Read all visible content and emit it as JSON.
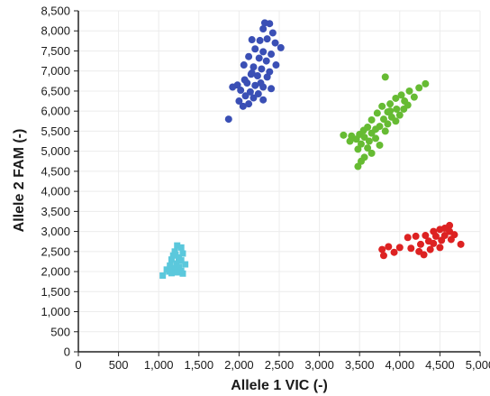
{
  "chart_data": {
    "type": "scatter",
    "title": "",
    "xlabel": "Allele 1 VIC (-)",
    "ylabel": "Allele 2 FAM (-)",
    "xlim": [
      0,
      5000
    ],
    "ylim": [
      0,
      8500
    ],
    "x_ticks": [
      0,
      500,
      1000,
      1500,
      2000,
      2500,
      3000,
      3500,
      4000,
      4500,
      5000
    ],
    "x_tick_labels": [
      "0",
      "500",
      "1,000",
      "1,500",
      "2,000",
      "2,500",
      "3,000",
      "3,500",
      "4,000",
      "4,500",
      "5,000"
    ],
    "y_ticks": [
      0,
      500,
      1000,
      1500,
      2000,
      2500,
      3000,
      3500,
      4000,
      4500,
      5000,
      5500,
      6000,
      6500,
      7000,
      7500,
      8000,
      8500
    ],
    "y_tick_labels": [
      "0",
      "500",
      "1,000",
      "1,500",
      "2,000",
      "2,500",
      "3,000",
      "3,500",
      "4,000",
      "4,500",
      "5,000",
      "5,500",
      "6,000",
      "6,500",
      "7,000",
      "7,500",
      "8,000",
      "8,500"
    ],
    "grid": true,
    "legend": "none",
    "series": [
      {
        "color": "#3a4fb5",
        "marker": "circle",
        "points": [
          [
            2320,
            8200
          ],
          [
            2380,
            8180
          ],
          [
            2300,
            8050
          ],
          [
            2420,
            7950
          ],
          [
            2160,
            7780
          ],
          [
            2260,
            7760
          ],
          [
            2350,
            7800
          ],
          [
            2450,
            7700
          ],
          [
            2520,
            7580
          ],
          [
            2200,
            7550
          ],
          [
            2300,
            7480
          ],
          [
            2400,
            7420
          ],
          [
            2120,
            7360
          ],
          [
            2250,
            7320
          ],
          [
            2340,
            7250
          ],
          [
            2460,
            7150
          ],
          [
            2060,
            7150
          ],
          [
            2180,
            7100
          ],
          [
            2280,
            7050
          ],
          [
            2380,
            6980
          ],
          [
            2150,
            6920
          ],
          [
            2230,
            6880
          ],
          [
            2350,
            6850
          ],
          [
            2070,
            6780
          ],
          [
            1980,
            6650
          ],
          [
            2100,
            6700
          ],
          [
            2200,
            6640
          ],
          [
            2300,
            6600
          ],
          [
            2400,
            6560
          ],
          [
            1920,
            6600
          ],
          [
            2020,
            6520
          ],
          [
            2140,
            6480
          ],
          [
            2240,
            6430
          ],
          [
            2080,
            6380
          ],
          [
            2180,
            6330
          ],
          [
            2300,
            6280
          ],
          [
            2000,
            6250
          ],
          [
            2120,
            6180
          ],
          [
            2050,
            6120
          ],
          [
            1870,
            5800
          ],
          [
            2270,
            6700
          ],
          [
            2160,
            6950
          ]
        ]
      },
      {
        "color": "#66bb33",
        "marker": "circle",
        "points": [
          [
            3820,
            6850
          ],
          [
            4320,
            6680
          ],
          [
            4240,
            6580
          ],
          [
            4120,
            6500
          ],
          [
            4020,
            6400
          ],
          [
            3950,
            6320
          ],
          [
            4060,
            6250
          ],
          [
            3880,
            6180
          ],
          [
            3780,
            6120
          ],
          [
            4100,
            6150
          ],
          [
            3960,
            6050
          ],
          [
            3850,
            5980
          ],
          [
            3720,
            5950
          ],
          [
            4000,
            5900
          ],
          [
            3900,
            5850
          ],
          [
            3800,
            5800
          ],
          [
            3650,
            5780
          ],
          [
            3950,
            5750
          ],
          [
            3850,
            5680
          ],
          [
            3750,
            5620
          ],
          [
            3600,
            5600
          ],
          [
            3700,
            5550
          ],
          [
            3550,
            5520
          ],
          [
            3820,
            5500
          ],
          [
            3650,
            5450
          ],
          [
            3500,
            5420
          ],
          [
            3400,
            5380
          ],
          [
            3300,
            5400
          ],
          [
            3560,
            5350
          ],
          [
            3460,
            5300
          ],
          [
            3700,
            5320
          ],
          [
            3620,
            5250
          ],
          [
            3380,
            5250
          ],
          [
            3520,
            5180
          ],
          [
            3750,
            5150
          ],
          [
            3600,
            5080
          ],
          [
            3480,
            5050
          ],
          [
            3650,
            4950
          ],
          [
            3560,
            4850
          ],
          [
            3520,
            4750
          ],
          [
            3480,
            4620
          ],
          [
            3880,
            6000
          ],
          [
            4180,
            6350
          ],
          [
            4050,
            6050
          ]
        ]
      },
      {
        "color": "#dd2222",
        "marker": "circle",
        "points": [
          [
            4620,
            3150
          ],
          [
            4560,
            3080
          ],
          [
            4500,
            3050
          ],
          [
            4420,
            3000
          ],
          [
            4620,
            3000
          ],
          [
            4680,
            2920
          ],
          [
            4560,
            2900
          ],
          [
            4450,
            2880
          ],
          [
            4320,
            2900
          ],
          [
            4200,
            2880
          ],
          [
            4100,
            2850
          ],
          [
            4640,
            2800
          ],
          [
            4520,
            2780
          ],
          [
            4360,
            2760
          ],
          [
            4760,
            2680
          ],
          [
            4420,
            2700
          ],
          [
            4260,
            2680
          ],
          [
            4000,
            2600
          ],
          [
            3860,
            2620
          ],
          [
            4140,
            2580
          ],
          [
            3780,
            2550
          ],
          [
            4380,
            2550
          ],
          [
            4240,
            2500
          ],
          [
            3930,
            2480
          ],
          [
            3800,
            2400
          ],
          [
            4300,
            2420
          ],
          [
            4500,
            2600
          ]
        ]
      },
      {
        "color": "#5bc8dc",
        "marker": "square",
        "points": [
          [
            1230,
            2650
          ],
          [
            1280,
            2600
          ],
          [
            1200,
            2500
          ],
          [
            1300,
            2450
          ],
          [
            1180,
            2400
          ],
          [
            1250,
            2350
          ],
          [
            1160,
            2300
          ],
          [
            1280,
            2280
          ],
          [
            1220,
            2200
          ],
          [
            1330,
            2180
          ],
          [
            1140,
            2150
          ],
          [
            1250,
            2120
          ],
          [
            1190,
            2080
          ],
          [
            1100,
            2050
          ],
          [
            1280,
            2020
          ],
          [
            1230,
            1980
          ],
          [
            1160,
            1960
          ],
          [
            1300,
            1950
          ],
          [
            1050,
            1900
          ],
          [
            1130,
            2000
          ],
          [
            1210,
            2420
          ]
        ]
      }
    ]
  }
}
